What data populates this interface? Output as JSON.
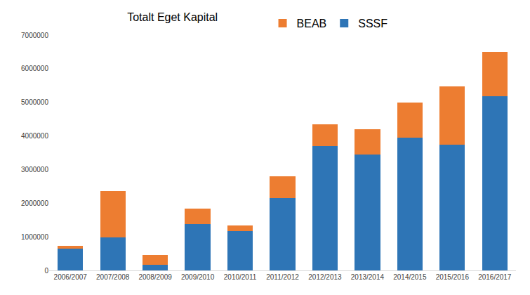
{
  "chart_data": {
    "type": "bar",
    "title": "Totalt Eget Kapital",
    "categories": [
      "2006/2007",
      "2007/2008",
      "2008/2009",
      "2009/2010",
      "2010/2011",
      "2011/2012",
      "2012/2013",
      "2013/2014",
      "2014/2015",
      "2015/2016",
      "2016/2017"
    ],
    "series": [
      {
        "name": "SSSF",
        "color": "#2E75B6",
        "values": [
          640000,
          980000,
          170000,
          1370000,
          1180000,
          2160000,
          3700000,
          3440000,
          3940000,
          3740000,
          5190000
        ]
      },
      {
        "name": "BEAB",
        "color": "#ED7D31",
        "values": [
          100000,
          1390000,
          290000,
          460000,
          150000,
          650000,
          650000,
          750000,
          1060000,
          1740000,
          1310000
        ]
      }
    ],
    "stacked": true,
    "ylim": [
      0,
      7000000
    ],
    "yticks": [
      0,
      1000000,
      2000000,
      3000000,
      4000000,
      5000000,
      6000000,
      7000000
    ],
    "grid": false,
    "legend": "top"
  }
}
